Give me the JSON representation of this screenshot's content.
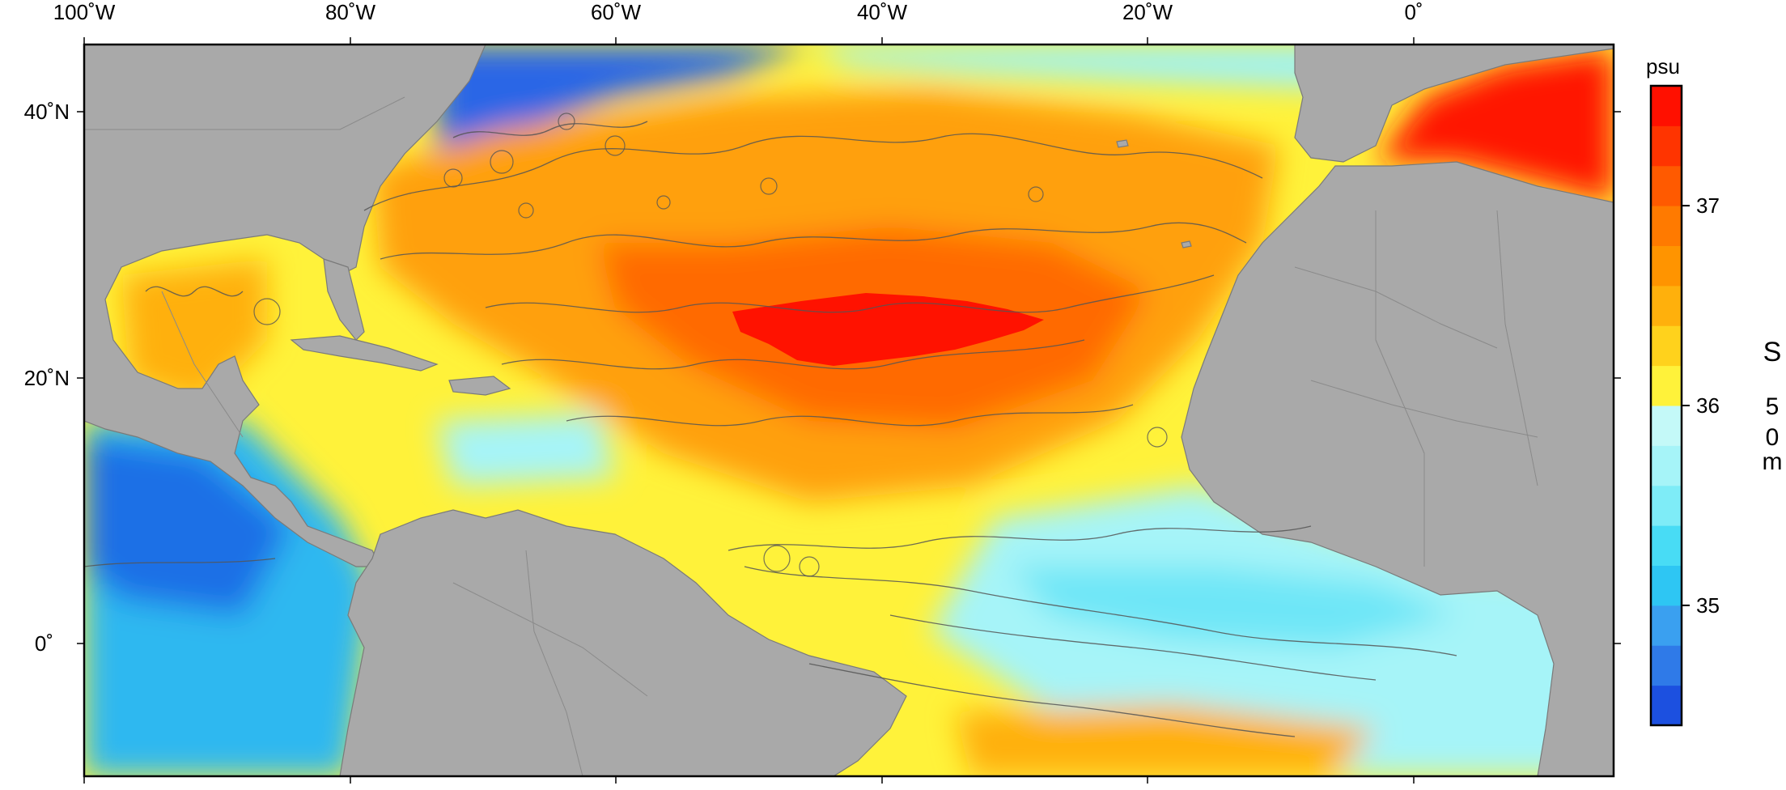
{
  "map": {
    "lon_labels": [
      "100˚W",
      "80˚W",
      "60˚W",
      "40˚W",
      "20˚W",
      "0˚"
    ],
    "lat_labels": [
      "40˚N",
      "20˚N",
      "0˚"
    ],
    "extent": {
      "lon_min": -100,
      "lon_max": 15,
      "lat_min": -10,
      "lat_max": 45
    },
    "ocean_salinity_regions": [
      {
        "name": "north-atlantic-subtropical-max",
        "approx_psu": 37.4
      },
      {
        "name": "mediterranean",
        "approx_psu": 37.5
      },
      {
        "name": "equatorial-atlantic",
        "approx_psu": 35.4
      },
      {
        "name": "eastern-pacific",
        "approx_psu": 34.7
      }
    ],
    "land_color": "#a9a9a9",
    "track_color": "#555555"
  },
  "colorbar": {
    "title": "psu",
    "ticks": [
      {
        "value": 35,
        "label": "35"
      },
      {
        "value": 36,
        "label": "36"
      },
      {
        "value": 37,
        "label": "37"
      }
    ],
    "range": [
      34.4,
      37.6
    ],
    "colors": [
      "#1c50e0",
      "#2f7ae8",
      "#3aa0f0",
      "#2ec6f3",
      "#48dcf5",
      "#7eecf7",
      "#a6f4f8",
      "#c4f9f8",
      "#fff23a",
      "#ffd21c",
      "#ffb00c",
      "#ff9400",
      "#ff7a00",
      "#ff5a00",
      "#ff3400",
      "#ff1000"
    ]
  },
  "side_label": {
    "letters": [
      "S",
      "5",
      "0",
      "m"
    ]
  }
}
